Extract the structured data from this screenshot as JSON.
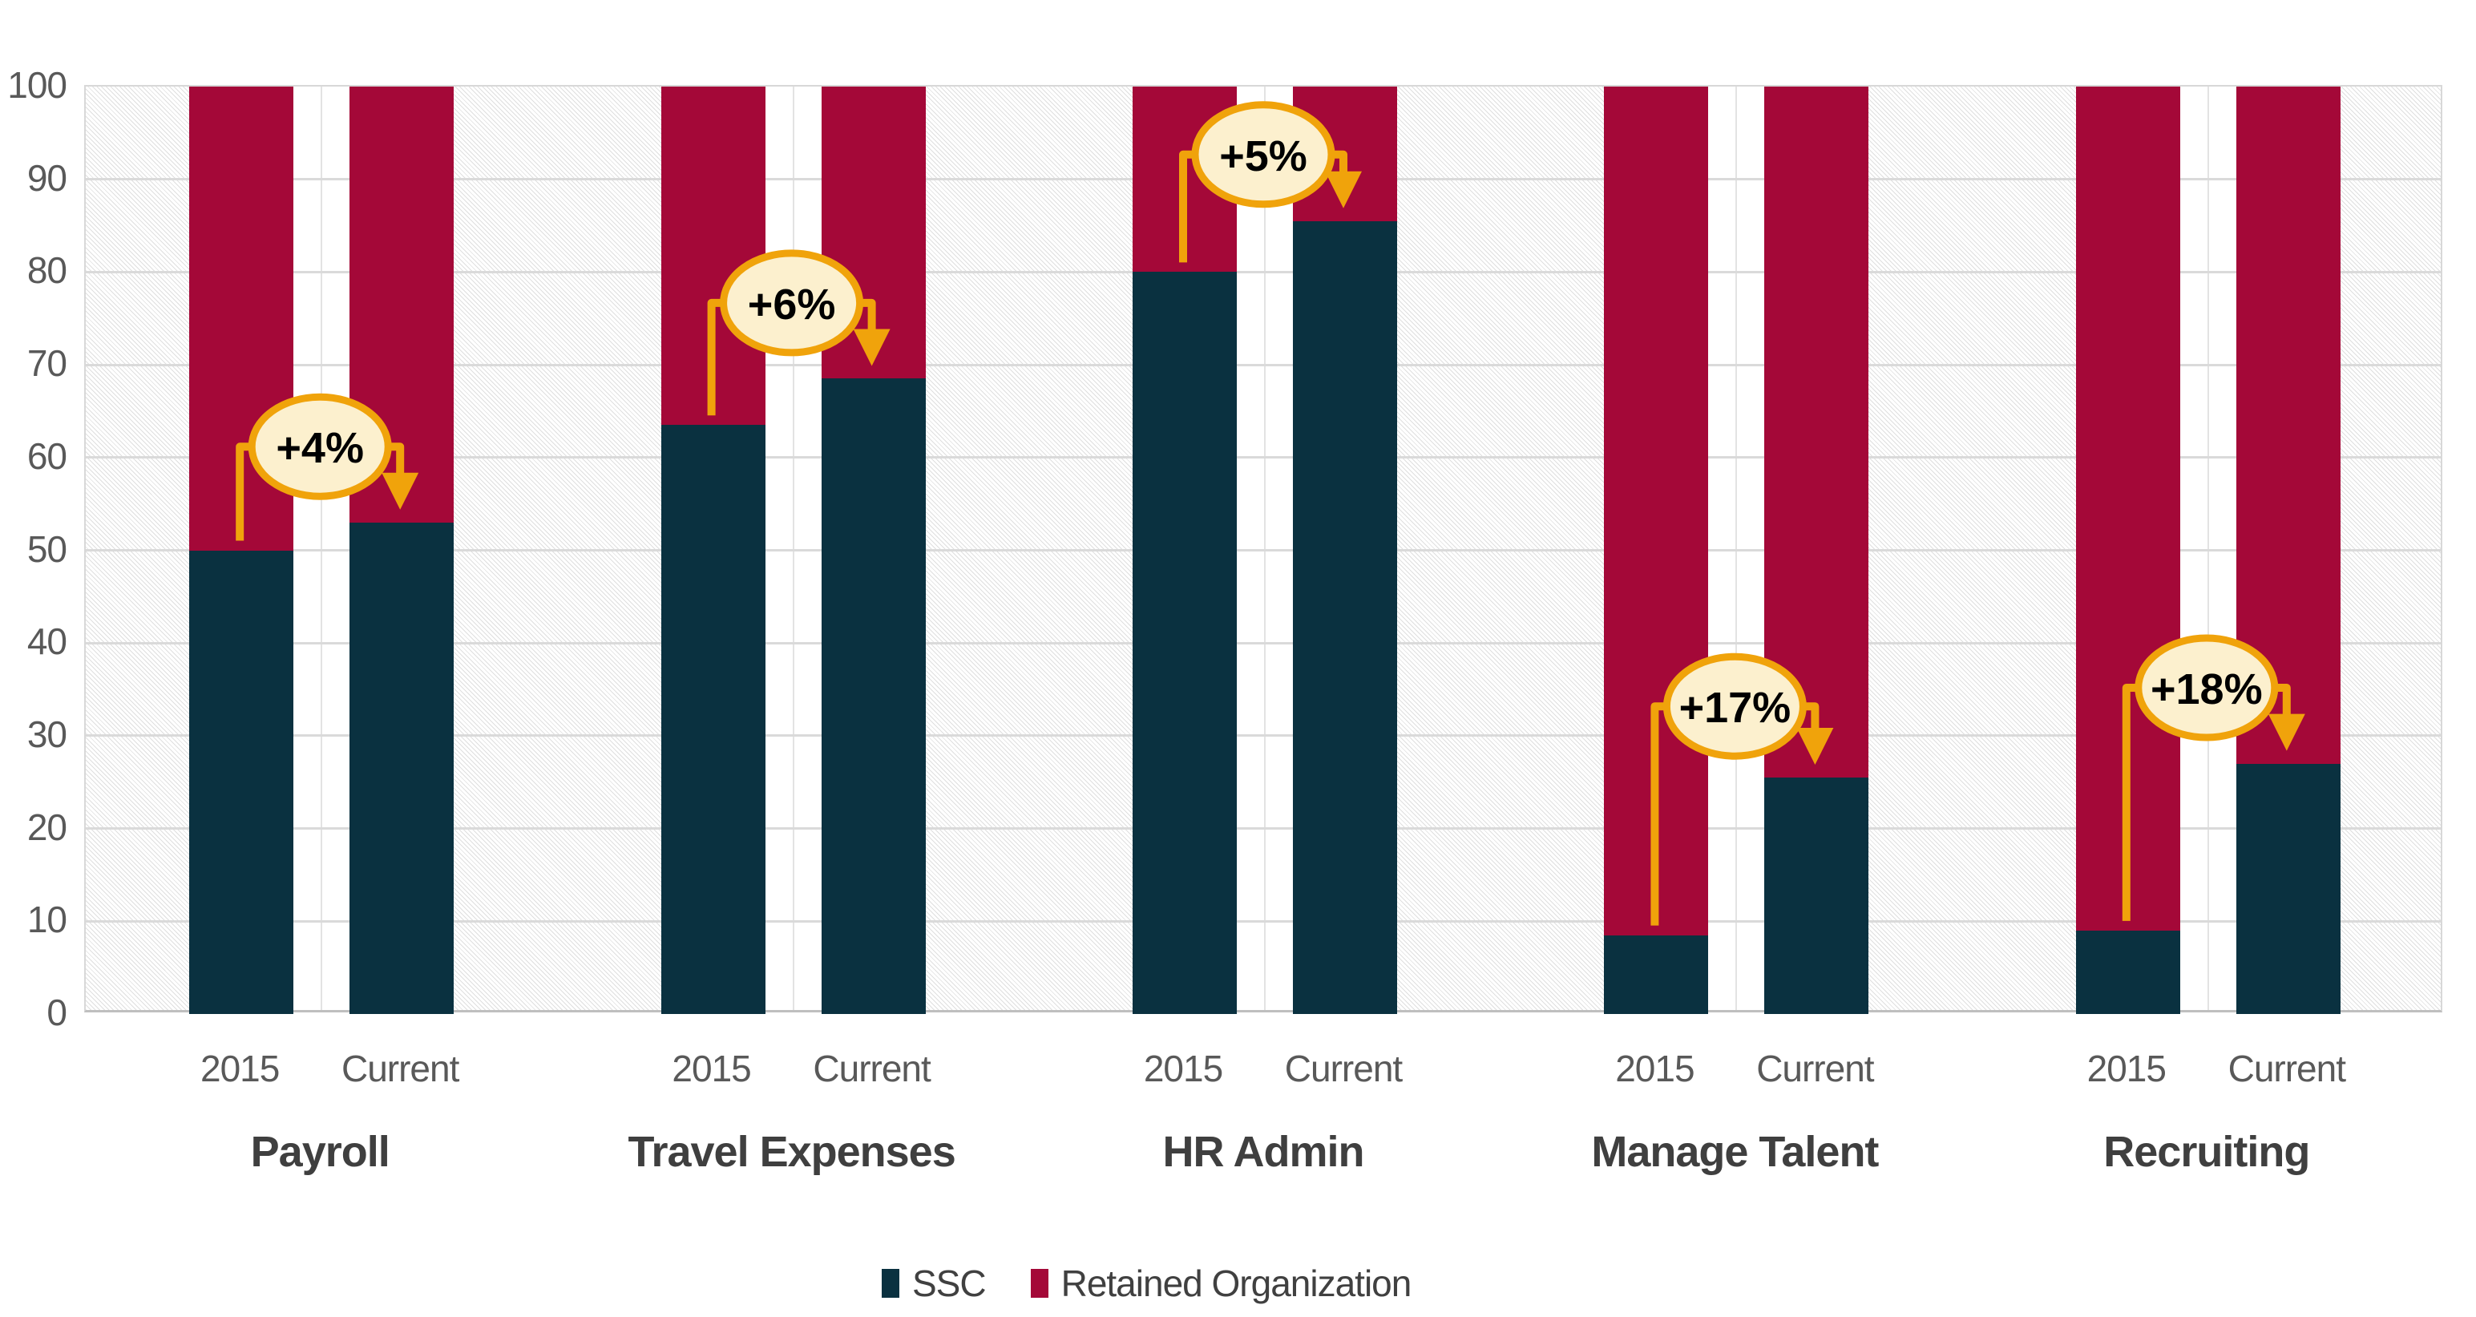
{
  "chart_data": {
    "type": "bar",
    "subtype": "100-percent-stacked-column-pairs",
    "title": "",
    "xlabel": "",
    "ylabel": "",
    "ylim": [
      0,
      100
    ],
    "y_ticks": [
      0,
      10,
      20,
      30,
      40,
      50,
      60,
      70,
      80,
      90,
      100
    ],
    "grid": "horizontal",
    "legend_position": "bottom",
    "x_tick_labels": [
      "2015",
      "Current"
    ],
    "series_names": [
      "SSC",
      "Retained Organization"
    ],
    "groups": [
      {
        "category": "Payroll",
        "callout": "+4%",
        "callout_center_value": 61,
        "bars": [
          {
            "label": "2015",
            "ssc": 50,
            "retained": 50
          },
          {
            "label": "Current",
            "ssc": 53,
            "retained": 47
          }
        ]
      },
      {
        "category": "Travel Expenses",
        "callout": "+6%",
        "callout_center_value": 76.5,
        "bars": [
          {
            "label": "2015",
            "ssc": 63.5,
            "retained": 36.5
          },
          {
            "label": "Current",
            "ssc": 68.5,
            "retained": 31.5
          }
        ]
      },
      {
        "category": "HR Admin",
        "callout": "+5%",
        "callout_center_value": 92.5,
        "bars": [
          {
            "label": "2015",
            "ssc": 80,
            "retained": 20
          },
          {
            "label": "Current",
            "ssc": 85.5,
            "retained": 14.5
          }
        ]
      },
      {
        "category": "Manage Talent",
        "callout": "+17%",
        "callout_center_value": 33,
        "bars": [
          {
            "label": "2015",
            "ssc": 8.5,
            "retained": 91.5
          },
          {
            "label": "Current",
            "ssc": 25.5,
            "retained": 74.5
          }
        ]
      },
      {
        "category": "Recruiting",
        "callout": "+18%",
        "callout_center_value": 35,
        "bars": [
          {
            "label": "2015",
            "ssc": 9,
            "retained": 91
          },
          {
            "label": "Current",
            "ssc": 27,
            "retained": 73
          }
        ]
      }
    ],
    "legend": [
      {
        "label": "SSC",
        "color": "#0A3140"
      },
      {
        "label": "Retained Organization",
        "color": "#A40838"
      }
    ],
    "colors": {
      "ssc_bar": "#0A3140",
      "retained_bar": "#A40838",
      "callout_stroke": "#F0A30B",
      "callout_fill": "#FCF0CE",
      "callout_text": "#000000",
      "gridline": "#DADADA",
      "axis_line": "#BFBFBF",
      "plot_border": "#D8D8D8",
      "hatch_line": "#DFDFDF",
      "group_band": "#FFFFFF",
      "tick_label": "#595959",
      "category_label": "#3F3F3F",
      "legend_text": "#404040"
    }
  }
}
